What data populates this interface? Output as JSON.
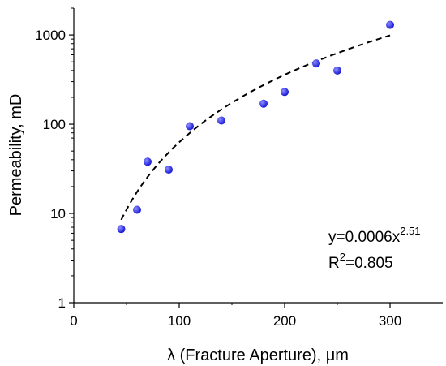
{
  "chart_data": {
    "type": "scatter",
    "title": "",
    "xlabel": "λ (Fracture Aperture), μm",
    "ylabel": "Permeability, mD",
    "x_scale": "linear",
    "y_scale": "log",
    "xlim": [
      0,
      350
    ],
    "ylim": [
      1,
      2000
    ],
    "x_ticks": [
      0,
      100,
      200,
      300
    ],
    "x_tick_labels": [
      "0",
      "100",
      "200",
      "300"
    ],
    "y_ticks": [
      1,
      10,
      100,
      1000
    ],
    "y_tick_labels": [
      "1",
      "10",
      "100",
      "1000"
    ],
    "grid": false,
    "legend": "none",
    "points": [
      {
        "x": 45,
        "y": 6.7
      },
      {
        "x": 60,
        "y": 11
      },
      {
        "x": 70,
        "y": 38
      },
      {
        "x": 90,
        "y": 31
      },
      {
        "x": 110,
        "y": 95
      },
      {
        "x": 140,
        "y": 110
      },
      {
        "x": 180,
        "y": 170
      },
      {
        "x": 200,
        "y": 230
      },
      {
        "x": 230,
        "y": 480
      },
      {
        "x": 250,
        "y": 400
      },
      {
        "x": 300,
        "y": 1300
      }
    ],
    "fit": {
      "type": "power",
      "a": 0.0006,
      "b": 2.51,
      "x_range": [
        45,
        300
      ],
      "style": "dashed"
    },
    "annotation": {
      "equation_prefix": "y=0.0006x",
      "equation_exponent": "2.51",
      "r2_prefix": "R",
      "r2_sup": "2",
      "r2_value": "=0.805"
    },
    "colors": {
      "marker": "#1a1ad6",
      "marker_highlight": "#8c8cff",
      "fit_line": "#000000",
      "axis": "#000000"
    }
  }
}
